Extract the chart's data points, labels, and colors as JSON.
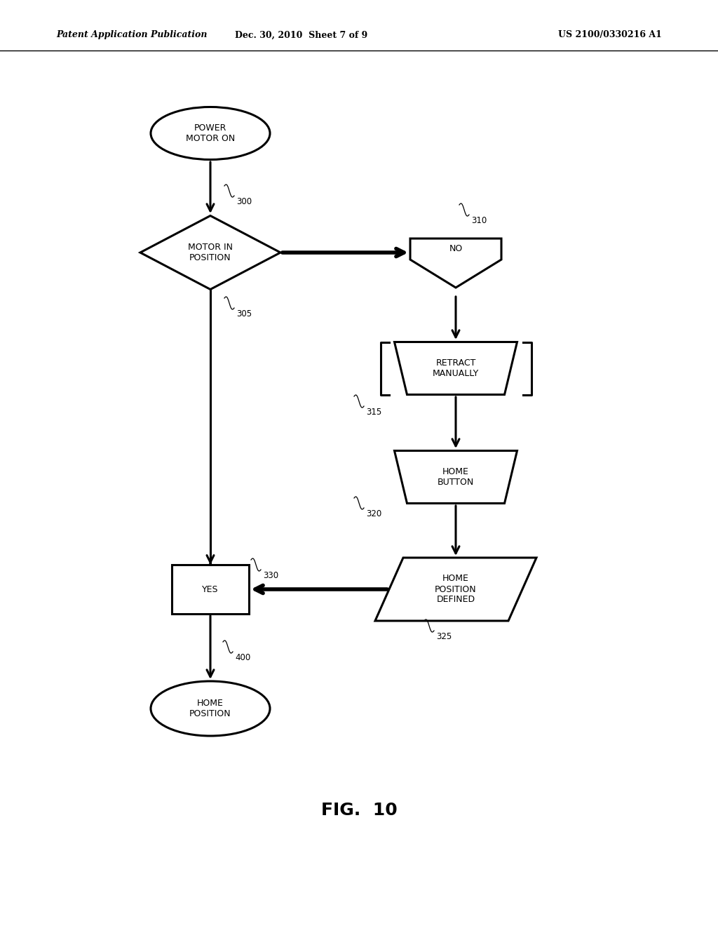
{
  "bg_color": "#ffffff",
  "header_left": "Patent Application Publication",
  "header_center": "Dec. 30, 2010  Sheet 7 of 9",
  "header_right": "US 2100/0330216 A1",
  "fig_label": "FIG.  10",
  "lw": 2.2,
  "text_fs": 9
}
